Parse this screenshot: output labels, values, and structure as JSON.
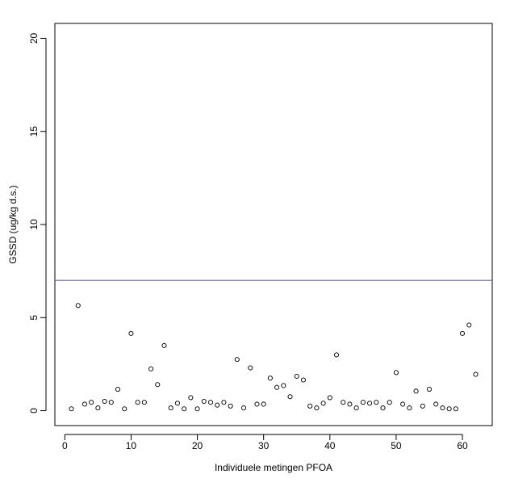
{
  "chart_data": {
    "type": "scatter",
    "title": "",
    "xlabel": "Individuele metingen PFOA",
    "ylabel": "GSSD (ug/kg d.s.)",
    "xlim": [
      -1.5,
      64.5
    ],
    "ylim": [
      -0.8,
      20.8
    ],
    "xticks": [
      0,
      10,
      20,
      30,
      40,
      50,
      60
    ],
    "yticks": [
      0,
      5,
      10,
      15,
      20
    ],
    "grid": false,
    "legend": "none",
    "marker": "open-circle",
    "point_color": "#000000",
    "series": [
      {
        "x": [
          1,
          2,
          3,
          4,
          5,
          6,
          7,
          8,
          9,
          10,
          11,
          12,
          13,
          14,
          15,
          16,
          17,
          18,
          19,
          20,
          21,
          22,
          23,
          24,
          25,
          26,
          27,
          28,
          29,
          30,
          31,
          32,
          33,
          34,
          35,
          36,
          37,
          38,
          39,
          40,
          41,
          42,
          43,
          44,
          45,
          46,
          47,
          48,
          49,
          50,
          51,
          52,
          53,
          54,
          55,
          56,
          57,
          58,
          59,
          60,
          61,
          62
        ],
        "y": [
          0.1,
          5.65,
          0.35,
          0.45,
          0.15,
          0.5,
          0.45,
          1.15,
          0.1,
          4.15,
          0.45,
          0.45,
          2.25,
          1.4,
          3.5,
          0.15,
          0.4,
          0.1,
          0.7,
          0.1,
          0.5,
          0.45,
          0.3,
          0.45,
          0.25,
          2.75,
          0.15,
          2.3,
          0.35,
          0.35,
          1.75,
          1.25,
          1.35,
          0.75,
          1.85,
          1.65,
          0.25,
          0.15,
          0.4,
          0.7,
          3.0,
          0.45,
          0.35,
          0.15,
          0.45,
          0.4,
          0.45,
          0.15,
          0.45,
          2.05,
          0.35,
          0.15,
          1.05,
          0.25,
          1.15,
          0.35,
          0.15,
          0.1,
          0.1,
          4.15,
          4.6,
          1.95
        ]
      }
    ],
    "reference_lines": [
      {
        "orientation": "horizontal",
        "y": 7.0,
        "color": "#6060d8"
      }
    ]
  }
}
